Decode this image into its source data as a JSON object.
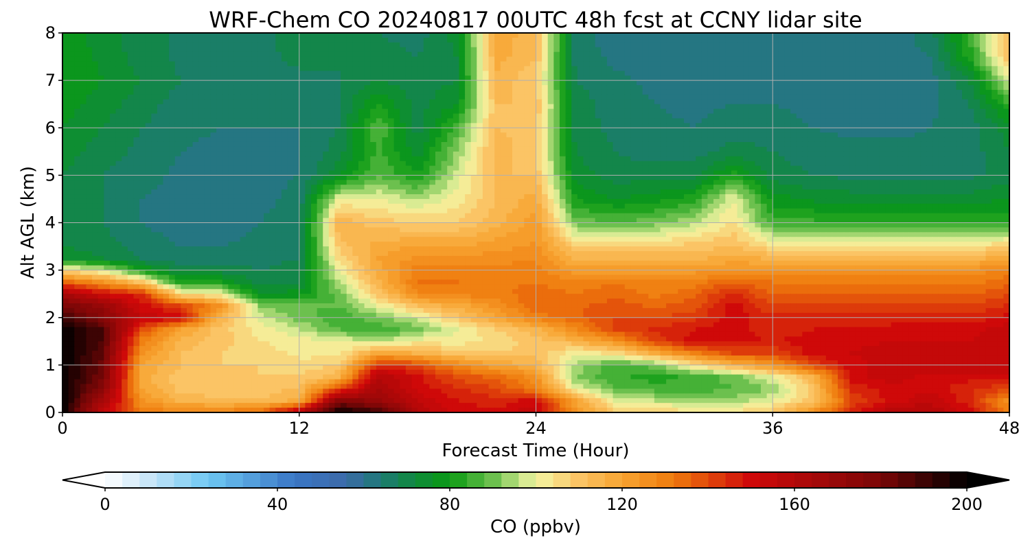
{
  "chart_data": {
    "type": "heatmap",
    "title": "WRF-Chem CO  20240817 00UTC 48h fcst at CCNY lidar site",
    "xlabel": "Forecast Time (Hour)",
    "ylabel": "Alt AGL (km)",
    "xlim": [
      0,
      48
    ],
    "ylim": [
      0,
      8
    ],
    "x_ticks": [
      0,
      12,
      24,
      36,
      48
    ],
    "y_ticks": [
      0,
      1,
      2,
      3,
      4,
      5,
      6,
      7,
      8
    ],
    "grid": true,
    "x_hours": [
      0,
      2,
      4,
      6,
      8,
      10,
      12,
      14,
      16,
      18,
      20,
      22,
      24,
      26,
      28,
      30,
      32,
      34,
      36,
      38,
      40,
      42,
      44,
      46,
      48
    ],
    "y_km": [
      0,
      0.25,
      0.5,
      0.75,
      1,
      1.25,
      1.5,
      1.75,
      2,
      2.25,
      2.5,
      2.75,
      3,
      3.25,
      3.5,
      4,
      4.5,
      5,
      5.5,
      6,
      6.5,
      7,
      7.5,
      8
    ],
    "values_ppbv": [
      [
        200,
        155,
        130,
        130,
        130,
        135,
        160,
        200,
        190,
        160,
        150,
        150,
        155,
        125,
        110,
        108,
        105,
        105,
        110,
        125,
        145,
        160,
        160,
        150,
        130
      ],
      [
        200,
        165,
        125,
        115,
        112,
        112,
        118,
        175,
        170,
        155,
        148,
        145,
        150,
        120,
        100,
        96,
        95,
        94,
        100,
        110,
        140,
        150,
        155,
        145,
        125
      ],
      [
        200,
        175,
        120,
        110,
        110,
        110,
        112,
        140,
        165,
        150,
        145,
        140,
        130,
        100,
        88,
        86,
        85,
        88,
        92,
        110,
        145,
        150,
        150,
        145,
        140
      ],
      [
        200,
        180,
        118,
        110,
        108,
        108,
        108,
        115,
        160,
        150,
        138,
        135,
        125,
        92,
        85,
        82,
        85,
        90,
        100,
        115,
        150,
        155,
        150,
        150,
        150
      ],
      [
        200,
        182,
        120,
        112,
        108,
        108,
        105,
        108,
        145,
        140,
        128,
        120,
        115,
        95,
        85,
        90,
        105,
        115,
        125,
        140,
        150,
        155,
        155,
        155,
        155
      ],
      [
        200,
        185,
        125,
        112,
        108,
        106,
        103,
        102,
        120,
        115,
        110,
        108,
        110,
        102,
        105,
        118,
        130,
        140,
        140,
        150,
        152,
        155,
        155,
        155,
        155
      ],
      [
        200,
        188,
        130,
        115,
        110,
        104,
        102,
        100,
        95,
        102,
        102,
        105,
        110,
        115,
        125,
        140,
        150,
        150,
        148,
        150,
        150,
        152,
        152,
        152,
        155
      ],
      [
        200,
        188,
        140,
        120,
        110,
        102,
        96,
        88,
        85,
        90,
        100,
        108,
        115,
        128,
        140,
        145,
        148,
        150,
        145,
        148,
        148,
        150,
        150,
        150,
        155
      ],
      [
        190,
        175,
        155,
        150,
        115,
        98,
        90,
        85,
        90,
        98,
        110,
        120,
        130,
        135,
        140,
        140,
        142,
        150,
        145,
        145,
        145,
        145,
        145,
        145,
        150
      ],
      [
        180,
        170,
        150,
        140,
        125,
        92,
        88,
        88,
        100,
        112,
        118,
        125,
        135,
        135,
        138,
        135,
        138,
        150,
        140,
        140,
        140,
        140,
        140,
        140,
        145
      ],
      [
        165,
        150,
        145,
        105,
        100,
        75,
        78,
        90,
        110,
        128,
        130,
        130,
        135,
        132,
        135,
        130,
        135,
        145,
        135,
        135,
        135,
        135,
        135,
        135,
        140
      ],
      [
        135,
        125,
        110,
        80,
        80,
        70,
        72,
        95,
        115,
        132,
        132,
        130,
        132,
        128,
        132,
        128,
        130,
        135,
        132,
        130,
        130,
        130,
        130,
        130,
        135
      ],
      [
        105,
        98,
        80,
        70,
        70,
        68,
        70,
        100,
        118,
        130,
        130,
        130,
        130,
        122,
        122,
        122,
        122,
        125,
        125,
        125,
        125,
        125,
        125,
        125,
        130
      ],
      [
        75,
        72,
        68,
        66,
        66,
        66,
        68,
        105,
        120,
        125,
        125,
        126,
        128,
        115,
        115,
        115,
        115,
        118,
        115,
        115,
        115,
        115,
        115,
        115,
        118
      ],
      [
        72,
        70,
        66,
        64,
        64,
        65,
        68,
        110,
        118,
        120,
        120,
        122,
        125,
        108,
        108,
        108,
        110,
        112,
        105,
        105,
        104,
        104,
        104,
        104,
        108
      ],
      [
        70,
        68,
        64,
        62,
        62,
        64,
        66,
        115,
        110,
        108,
        108,
        115,
        122,
        90,
        88,
        90,
        95,
        105,
        85,
        85,
        84,
        84,
        84,
        84,
        82
      ],
      [
        70,
        68,
        64,
        62,
        62,
        63,
        65,
        100,
        100,
        95,
        102,
        112,
        118,
        80,
        76,
        78,
        82,
        100,
        78,
        75,
        74,
        74,
        74,
        74,
        76
      ],
      [
        72,
        68,
        66,
        63,
        62,
        63,
        64,
        75,
        88,
        80,
        98,
        112,
        112,
        74,
        70,
        70,
        70,
        82,
        70,
        68,
        67,
        67,
        67,
        67,
        70
      ],
      [
        74,
        70,
        67,
        64,
        63,
        63,
        64,
        70,
        85,
        74,
        92,
        115,
        108,
        72,
        68,
        66,
        66,
        70,
        68,
        66,
        65,
        65,
        65,
        66,
        72
      ],
      [
        76,
        72,
        68,
        65,
        64,
        64,
        64,
        68,
        88,
        70,
        86,
        112,
        110,
        70,
        67,
        65,
        64,
        66,
        66,
        64,
        63,
        63,
        64,
        66,
        74
      ],
      [
        78,
        74,
        70,
        66,
        65,
        64,
        65,
        68,
        80,
        70,
        76,
        112,
        112,
        70,
        66,
        64,
        63,
        64,
        64,
        63,
        62,
        62,
        63,
        68,
        84
      ],
      [
        80,
        76,
        72,
        68,
        66,
        65,
        66,
        68,
        72,
        70,
        72,
        115,
        108,
        68,
        65,
        63,
        62,
        63,
        63,
        62,
        61,
        61,
        62,
        72,
        98
      ],
      [
        80,
        75,
        70,
        67,
        66,
        66,
        70,
        68,
        70,
        68,
        72,
        118,
        112,
        66,
        63,
        62,
        61,
        62,
        62,
        62,
        62,
        62,
        64,
        82,
        112
      ],
      [
        78,
        74,
        70,
        67,
        66,
        66,
        72,
        68,
        68,
        66,
        74,
        118,
        114,
        66,
        62,
        61,
        60,
        61,
        62,
        62,
        62,
        62,
        66,
        85,
        112
      ]
    ],
    "colorbar": {
      "label": "CO  (ppbv)",
      "ticks": [
        0,
        40,
        80,
        120,
        160,
        200
      ],
      "min": 0,
      "max": 200,
      "step": 4,
      "extend": "both",
      "placement": "bottom",
      "stops": [
        [
          0,
          "#ffffff"
        ],
        [
          10,
          "#c9e6f8"
        ],
        [
          24,
          "#6ec8f3"
        ],
        [
          44,
          "#3a76c5"
        ],
        [
          56,
          "#3c6aa8"
        ],
        [
          64,
          "#1d7a75"
        ],
        [
          72,
          "#0f8a3c"
        ],
        [
          80,
          "#0a9a12"
        ],
        [
          90,
          "#6cc04e"
        ],
        [
          100,
          "#f4f6a4"
        ],
        [
          110,
          "#fbc465"
        ],
        [
          120,
          "#f7a431"
        ],
        [
          132,
          "#ee7a0c"
        ],
        [
          150,
          "#cf0909"
        ],
        [
          180,
          "#7a0707"
        ],
        [
          200,
          "#000000"
        ]
      ]
    }
  }
}
